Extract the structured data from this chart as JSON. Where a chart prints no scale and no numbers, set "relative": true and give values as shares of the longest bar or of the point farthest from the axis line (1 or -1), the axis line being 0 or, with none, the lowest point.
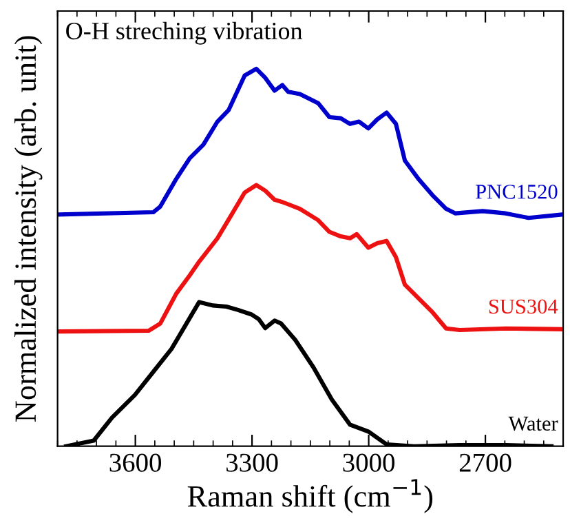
{
  "chart_data": {
    "type": "line",
    "relative": true,
    "xlabel": "Raman shift (cm$^{−1}$)",
    "ylabel": "Normalized intensity (arb. unit)",
    "annotations": [
      "O-H streching vibration"
    ],
    "xlim": [
      3800,
      2500
    ],
    "xticks": [
      3600,
      3300,
      3000,
      2700
    ],
    "grid": false,
    "tick_labels": "x",
    "marker": "none",
    "line_style": "solid",
    "series": [
      {
        "name": "PNC1520",
        "color": "#0000cc",
        "x": [
          3795,
          3554,
          3536,
          3495,
          3460,
          3425,
          3389,
          3360,
          3319,
          3289,
          3266,
          3242,
          3222,
          3207,
          3177,
          3130,
          3101,
          3072,
          3048,
          3025,
          3001,
          2978,
          2954,
          2930,
          2907,
          2872,
          2836,
          2801,
          2777,
          2707,
          2648,
          2589,
          2501
        ],
        "values": [
          0.614,
          0.62,
          0.635,
          0.708,
          0.763,
          0.799,
          0.86,
          0.891,
          0.982,
          1.0,
          0.976,
          0.942,
          0.957,
          0.939,
          0.933,
          0.909,
          0.872,
          0.869,
          0.854,
          0.86,
          0.842,
          0.866,
          0.884,
          0.854,
          0.757,
          0.708,
          0.665,
          0.629,
          0.617,
          0.623,
          0.617,
          0.605,
          0.614
        ]
      },
      {
        "name": "SUS304",
        "color": "#ee1111",
        "x": [
          3795,
          3566,
          3536,
          3495,
          3460,
          3436,
          3389,
          3354,
          3319,
          3289,
          3266,
          3242,
          3222,
          3207,
          3177,
          3130,
          3101,
          3072,
          3048,
          3031,
          3001,
          2978,
          2954,
          2930,
          2907,
          2872,
          2836,
          2801,
          2766,
          2648,
          2501
        ],
        "values": [
          0.304,
          0.306,
          0.325,
          0.404,
          0.453,
          0.489,
          0.551,
          0.611,
          0.672,
          0.692,
          0.677,
          0.653,
          0.647,
          0.641,
          0.629,
          0.599,
          0.568,
          0.556,
          0.551,
          0.562,
          0.526,
          0.538,
          0.544,
          0.501,
          0.428,
          0.392,
          0.355,
          0.312,
          0.308,
          0.312,
          0.31
        ]
      },
      {
        "name": "Water",
        "color": "#000000",
        "x": [
          3778,
          3707,
          3660,
          3601,
          3554,
          3507,
          3472,
          3436,
          3401,
          3366,
          3336,
          3301,
          3283,
          3266,
          3242,
          3225,
          3189,
          3142,
          3095,
          3048,
          3001,
          2954,
          2883,
          2766,
          2648,
          2530
        ],
        "values": [
          0.0,
          0.015,
          0.076,
          0.136,
          0.197,
          0.258,
          0.319,
          0.382,
          0.373,
          0.37,
          0.361,
          0.349,
          0.337,
          0.313,
          0.333,
          0.325,
          0.282,
          0.209,
          0.124,
          0.057,
          0.039,
          0.005,
          0.0,
          0.003,
          0.003,
          0.0
        ]
      }
    ]
  }
}
